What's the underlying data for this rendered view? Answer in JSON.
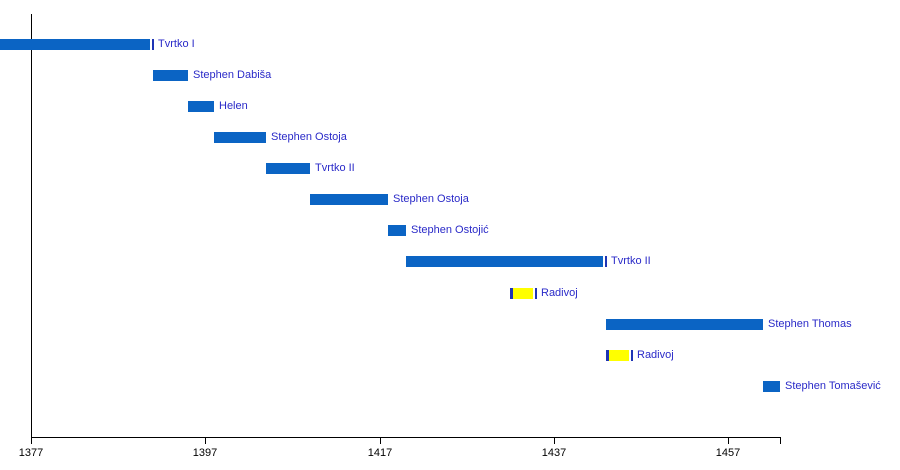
{
  "chart_data": {
    "type": "bar",
    "subtype": "horizontal-timeline-gantt",
    "title": "",
    "xlabel": "",
    "ylabel": "",
    "grid": false,
    "legend": false,
    "x_axis": {
      "min": 1377,
      "max": 1463,
      "ticks": [
        1377,
        1397,
        1417,
        1437,
        1457
      ],
      "tick_labels": [
        "1377",
        "1397",
        "1417",
        "1437",
        "1457"
      ],
      "unlabeled_end_tick": true
    },
    "colors": {
      "bar_blue": "#0b64c4",
      "bar_yellow": "#ffff00",
      "cap_navy": "#1f35b5",
      "label_blue": "#2a2ac8",
      "axis_black": "#000000",
      "background": "#ffffff"
    },
    "rows": [
      {
        "label": "Tvrtko I",
        "start": null,
        "end": 1391,
        "color": "blue",
        "starts_before_axis": true,
        "end_line": true
      },
      {
        "label": "Stephen Dabiša",
        "start": 1391,
        "end": 1395,
        "color": "blue"
      },
      {
        "label": "Helen",
        "start": 1395,
        "end": 1398,
        "color": "blue"
      },
      {
        "label": "Stephen Ostoja",
        "start": 1398,
        "end": 1404,
        "color": "blue"
      },
      {
        "label": "Tvrtko II",
        "start": 1404,
        "end": 1409,
        "color": "blue"
      },
      {
        "label": "Stephen Ostoja",
        "start": 1409,
        "end": 1418,
        "color": "blue"
      },
      {
        "label": "Stephen Ostojić",
        "start": 1418,
        "end": 1420,
        "color": "blue"
      },
      {
        "label": "Tvrtko II",
        "start": 1420,
        "end": 1443,
        "color": "blue",
        "end_line": true
      },
      {
        "label": "Radivoj",
        "start": 1432,
        "end": 1435,
        "color": "yellow",
        "start_cap": true,
        "end_line": true
      },
      {
        "label": "Stephen Thomas",
        "start": 1443,
        "end": 1461,
        "color": "blue"
      },
      {
        "label": "Radivoj",
        "start": 1443,
        "end": 1446,
        "color": "yellow",
        "start_cap": true,
        "end_line": true
      },
      {
        "label": "Stephen Tomašević",
        "start": 1461,
        "end": 1463,
        "color": "blue"
      }
    ]
  }
}
